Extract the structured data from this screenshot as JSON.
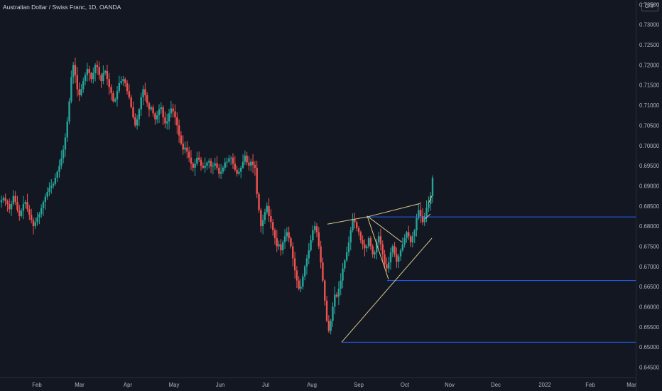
{
  "header": {
    "title": "Australian Dollar / Swiss Franc, 1D, OANDA"
  },
  "price_axis": {
    "currency": "CHF"
  },
  "colors": {
    "background": "#131722",
    "up": "#26a69a",
    "down": "#ef5350",
    "trendline": "#d8c98a",
    "level": "#2962ff",
    "text": "#b2b5be"
  },
  "chart_data": {
    "type": "candlestick",
    "title": "Australian Dollar / Swiss Franc, 1D, OANDA",
    "x_labels": [
      "Feb",
      "Mar",
      "Apr",
      "May",
      "Jun",
      "Jul",
      "Aug",
      "Sep",
      "Oct",
      "Nov",
      "Dec",
      "2022",
      "Feb",
      "Mar"
    ],
    "y_ticks": [
      "0.73500",
      "0.73000",
      "0.72500",
      "0.72000",
      "0.71500",
      "0.71000",
      "0.70500",
      "0.70000",
      "0.69500",
      "0.69000",
      "0.68500",
      "0.68000",
      "0.67500",
      "0.67000",
      "0.66500",
      "0.66000",
      "0.65500",
      "0.65000",
      "0.64500"
    ],
    "ylim": [
      0.6442,
      0.7356
    ],
    "grid": false,
    "closes": [
      0.6865,
      0.687,
      0.6862,
      0.6855,
      0.6842,
      0.6855,
      0.6875,
      0.686,
      0.684,
      0.6825,
      0.6838,
      0.6855,
      0.686,
      0.6842,
      0.6828,
      0.6815,
      0.68,
      0.681,
      0.6822,
      0.683,
      0.6845,
      0.686,
      0.6873,
      0.6885,
      0.6895,
      0.69,
      0.6905,
      0.692,
      0.6935,
      0.695,
      0.6968,
      0.699,
      0.702,
      0.706,
      0.711,
      0.717,
      0.72,
      0.7175,
      0.714,
      0.7125,
      0.714,
      0.716,
      0.7175,
      0.719,
      0.718,
      0.7165,
      0.718,
      0.72,
      0.7195,
      0.7175,
      0.716,
      0.718,
      0.7185,
      0.7165,
      0.7145,
      0.713,
      0.711,
      0.7115,
      0.7135,
      0.7155,
      0.716,
      0.7165,
      0.7155,
      0.7135,
      0.712,
      0.7095,
      0.707,
      0.705,
      0.7065,
      0.709,
      0.712,
      0.714,
      0.7125,
      0.7105,
      0.709,
      0.7095,
      0.708,
      0.7065,
      0.7075,
      0.709,
      0.7095,
      0.707,
      0.7055,
      0.706,
      0.708,
      0.7092,
      0.7085,
      0.707,
      0.705,
      0.7025,
      0.7005,
      0.699,
      0.6995,
      0.6985,
      0.697,
      0.6955,
      0.6945,
      0.6955,
      0.697,
      0.6965,
      0.695,
      0.6945,
      0.695,
      0.6958,
      0.6962,
      0.6948,
      0.695,
      0.6956,
      0.6945,
      0.693,
      0.6935,
      0.6945,
      0.6958,
      0.696,
      0.6968,
      0.697,
      0.6955,
      0.694,
      0.693,
      0.6935,
      0.6945,
      0.696,
      0.6975,
      0.6958,
      0.695,
      0.696,
      0.6952,
      0.6945,
      0.688,
      0.684,
      0.68,
      0.6815,
      0.6835,
      0.685,
      0.6825,
      0.681,
      0.679,
      0.677,
      0.675,
      0.6755,
      0.674,
      0.676,
      0.6775,
      0.6785,
      0.677,
      0.675,
      0.672,
      0.669,
      0.6665,
      0.6645,
      0.665,
      0.6675,
      0.67,
      0.672,
      0.674,
      0.6765,
      0.679,
      0.68,
      0.6785,
      0.675,
      0.671,
      0.6665,
      0.6615,
      0.6565,
      0.654,
      0.6565,
      0.66,
      0.663,
      0.6625,
      0.6645,
      0.6665,
      0.6695,
      0.6715,
      0.6735,
      0.676,
      0.679,
      0.6818,
      0.681,
      0.6795,
      0.6785,
      0.6765,
      0.6755,
      0.6745,
      0.675,
      0.677,
      0.675,
      0.673,
      0.6735,
      0.676,
      0.6775,
      0.6755,
      0.673,
      0.6705,
      0.6695,
      0.671,
      0.6735,
      0.675,
      0.673,
      0.6712,
      0.6725,
      0.674,
      0.6755,
      0.677,
      0.6785,
      0.6775,
      0.676,
      0.6775,
      0.679,
      0.682,
      0.684,
      0.6825,
      0.681,
      0.6825,
      0.6845,
      0.6855,
      0.6875,
      0.692
    ],
    "trendlines": [
      {
        "from": [
          "Aug-05",
          0.6805
        ],
        "to": [
          "Sep-03",
          0.6823
        ]
      },
      {
        "from": [
          "Sep-03",
          0.6823
        ],
        "to": [
          "Oct-13",
          0.6856
        ]
      },
      {
        "from": [
          "Oct-13",
          0.6856
        ],
        "to": [
          "Oct-19",
          0.6875
        ]
      },
      {
        "from": [
          "Aug-20",
          0.6512
        ],
        "to": [
          "Oct-20",
          0.677
        ]
      },
      {
        "from": [
          "Sep-04",
          0.6825
        ],
        "to": [
          "Sep-20",
          0.6668
        ]
      },
      {
        "from": [
          "Sep-04",
          0.6825
        ],
        "to": [
          "Sep-27",
          0.676
        ]
      },
      {
        "from": [
          "Oct-14",
          0.6818
        ],
        "to": [
          "Oct-19",
          0.683
        ]
      }
    ],
    "horizontal_levels": [
      0.6823,
      0.6665,
      0.6512
    ]
  }
}
